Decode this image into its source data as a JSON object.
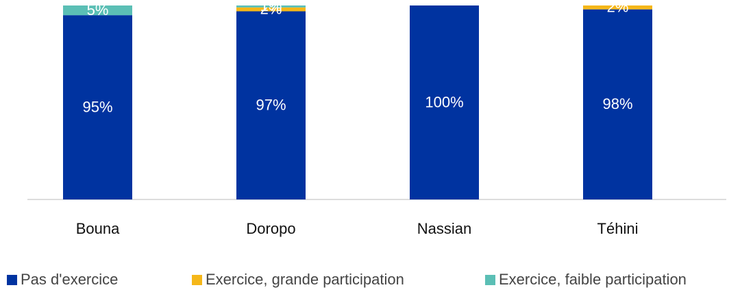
{
  "chart_data": {
    "type": "stacked_bar",
    "categories": [
      "Bouna",
      "Doropo",
      "Nassian",
      "Téhini"
    ],
    "series": [
      {
        "name": "Pas d'exercice",
        "color": "#0033a0",
        "values": [
          95,
          97,
          100,
          98
        ],
        "value_labels": [
          "95%",
          "97%",
          "100%",
          "98%"
        ]
      },
      {
        "name": "Exercice, grande participation",
        "color": "#f5b719",
        "values": [
          0,
          2,
          0,
          2
        ],
        "value_labels": [
          null,
          "2%",
          null,
          "2%"
        ]
      },
      {
        "name": "Exercice, faible participation",
        "color": "#5bbfb5",
        "values": [
          5,
          1,
          0,
          0
        ],
        "value_labels": [
          "5%",
          "1%",
          null,
          null
        ]
      }
    ],
    "ylim": [
      0,
      100
    ]
  }
}
